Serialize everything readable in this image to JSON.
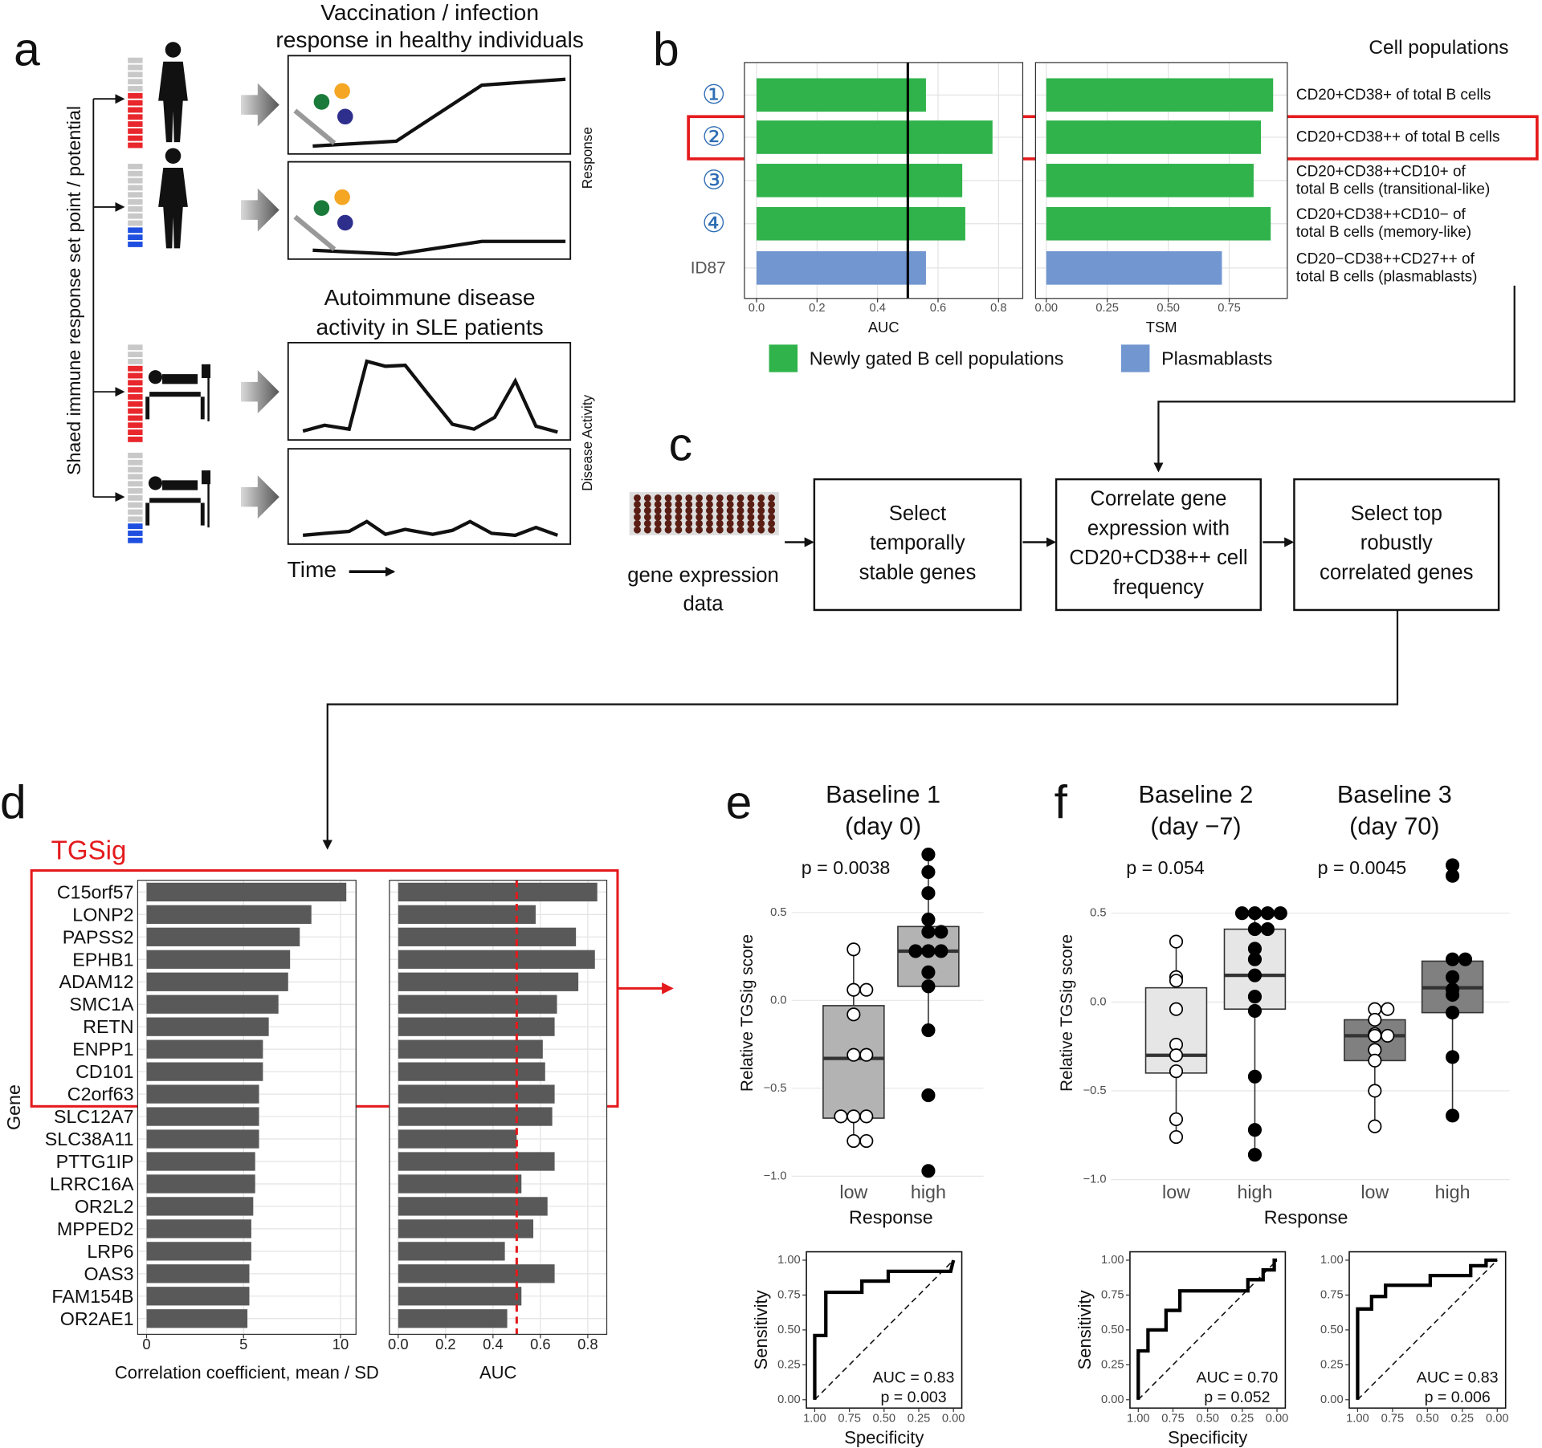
{
  "panel_labels": [
    "a",
    "b",
    "c",
    "d",
    "e",
    "f"
  ],
  "panel_a": {
    "titles": [
      [
        "Vaccination / infection",
        "response in healthy individuals"
      ],
      [
        "Autoimmune disease",
        "activity in SLE patients"
      ]
    ],
    "y_label": "Shaed immune response set point / potential",
    "side_labels": [
      "Response",
      "Disease Activity"
    ],
    "x_label": "Time"
  },
  "panel_b": {
    "header": "Cell populations",
    "legend": [
      {
        "name": "Newly gated B cell populations",
        "color": "#2fb34a"
      },
      {
        "name": "Plasmablasts",
        "color": "#7196d0"
      }
    ]
  },
  "panel_c": {
    "input": [
      "gene expression",
      "data"
    ],
    "steps": [
      [
        "Select",
        "temporally",
        "stable genes"
      ],
      [
        "Correlate gene",
        "expression with",
        "CD20+CD38++ cell",
        "frequency"
      ],
      [
        "Select top",
        "robustly",
        "correlated genes"
      ]
    ]
  },
  "panel_d": {
    "highlight": "TGSig"
  },
  "chart_data": [
    {
      "type": "hbar",
      "categories": [
        "①",
        "②",
        "③",
        "④",
        "ID87"
      ],
      "values": [
        0.56,
        0.78,
        0.68,
        0.69,
        0.56
      ],
      "colors": [
        "#2fb34a",
        "#2fb34a",
        "#2fb34a",
        "#2fb34a",
        "#7196d0"
      ],
      "xlim": [
        -0.04,
        0.88
      ],
      "xticks": [
        {
          "value": 0,
          "label": "0.0"
        },
        0.2,
        0.4,
        0.6,
        0.8
      ],
      "x_label": "AUC",
      "grid": true,
      "reference_line": 0.5,
      "reference_color": "#000000"
    },
    {
      "type": "hbar",
      "categories": [
        [
          "CD20+CD38+ of total B cells"
        ],
        [
          "CD20+CD38++ of total B cells"
        ],
        [
          "CD20+CD38++CD10+ of",
          "total B cells (transitional-like)"
        ],
        [
          "CD20+CD38++CD10− of",
          "total B cells (memory-like)"
        ],
        [
          "CD20−CD38++CD27++  of",
          "total B cells (plasmablasts)"
        ]
      ],
      "values": [
        0.93,
        0.88,
        0.85,
        0.92,
        0.72
      ],
      "colors": [
        "#2fb34a",
        "#2fb34a",
        "#2fb34a",
        "#2fb34a",
        "#7196d0"
      ],
      "xlim": [
        -0.044,
        0.988
      ],
      "xticks": [
        {
          "value": 0,
          "label": "0.00"
        },
        0.25,
        {
          "value": 0.5,
          "label": "0.50"
        },
        0.75
      ],
      "x_label": "TSM",
      "grid": true
    },
    {
      "type": "hbar",
      "categories": [
        "C15orf57",
        "LONP2",
        "PAPSS2",
        "EPHB1",
        "ADAM12",
        "SMC1A",
        "RETN",
        "ENPP1",
        "CD101",
        "C2orf63",
        "SLC12A7",
        "SLC38A11",
        "PTTG1IP",
        "LRRC16A",
        "OR2L2",
        "MPPED2",
        "LRP6",
        "OAS3",
        "FAM154B",
        "OR2AE1"
      ],
      "values": [
        10.3,
        8.5,
        7.9,
        7.4,
        7.3,
        6.8,
        6.3,
        6.0,
        6.0,
        5.8,
        5.8,
        5.8,
        5.6,
        5.6,
        5.5,
        5.4,
        5.4,
        5.3,
        5.3,
        5.2
      ],
      "colors": [
        "#595959",
        "#595959",
        "#595959",
        "#595959",
        "#595959",
        "#595959",
        "#595959",
        "#595959",
        "#595959",
        "#595959",
        "#595959",
        "#595959",
        "#595959",
        "#595959",
        "#595959",
        "#595959",
        "#595959",
        "#595959",
        "#595959",
        "#595959"
      ],
      "xlim": [
        -0.46,
        10.8
      ],
      "xticks": [
        0,
        5,
        10
      ],
      "x_label": "Correlation coefficient, mean / SD",
      "y_label": "Gene",
      "grid": true
    },
    {
      "type": "hbar",
      "values": [
        0.84,
        0.58,
        0.75,
        0.83,
        0.76,
        0.67,
        0.66,
        0.61,
        0.62,
        0.66,
        0.65,
        0.5,
        0.66,
        0.52,
        0.63,
        0.57,
        0.45,
        0.66,
        0.52,
        0.46
      ],
      "colors": [
        "#595959",
        "#595959",
        "#595959",
        "#595959",
        "#595959",
        "#595959",
        "#595959",
        "#595959",
        "#595959",
        "#595959",
        "#595959",
        "#595959",
        "#595959",
        "#595959",
        "#595959",
        "#595959",
        "#595959",
        "#595959",
        "#595959",
        "#595959"
      ],
      "xlim": [
        -0.037,
        0.88
      ],
      "xticks": [
        {
          "value": 0,
          "label": "0.0"
        },
        0.2,
        0.4,
        0.6,
        0.8
      ],
      "x_label": "AUC",
      "grid": true,
      "reference_line": 0.5,
      "reference_color": "#e41a1c",
      "reference_dashed": true
    },
    {
      "type": "box",
      "title": "Baseline 1",
      "subtitle": "(day 0)",
      "annotation": "p = 0.0038",
      "categories": [
        "low",
        "high"
      ],
      "x_label": "Response",
      "y_label": "Relative TGSig score",
      "ylim": [
        -1.05,
        0.89
      ],
      "yticks": [
        0.5,
        {
          "value": 0,
          "label": "0.0"
        },
        {
          "value": -0.5,
          "label": "−0.5"
        },
        {
          "value": -1,
          "label": "−1.0"
        }
      ],
      "box_color": "#b3b3b3",
      "point_colors": [
        "#ffffff",
        "#000000"
      ],
      "boxes": [
        {
          "min": -0.8,
          "q1": -0.67,
          "median": -0.33,
          "q3": -0.03,
          "max": 0.29,
          "points": [
            0.29,
            0.06,
            0.06,
            -0.08,
            -0.31,
            -0.31,
            -0.66,
            -0.66,
            -0.66,
            -0.8,
            -0.8
          ]
        },
        {
          "min": -0.17,
          "q1": 0.08,
          "median": 0.28,
          "q3": 0.42,
          "max": 0.83,
          "points": [
            0.83,
            0.73,
            0.61,
            0.46,
            0.39,
            0.39,
            0.28,
            0.28,
            0.28,
            0.16,
            0.08,
            -0.17,
            -0.54,
            -0.97
          ]
        }
      ]
    },
    {
      "type": "box",
      "title": "Baseline 2",
      "subtitle": "(day −7)",
      "annotation": "p = 0.054",
      "categories": [
        "low",
        "high"
      ],
      "x_label": "Response",
      "y_label": "Relative TGSig score",
      "ylim": [
        -1.03,
        0.89
      ],
      "yticks": [
        0.5,
        {
          "value": 0,
          "label": "0.0"
        },
        {
          "value": -0.5,
          "label": "−0.5"
        },
        {
          "value": -1,
          "label": "−1.0"
        }
      ],
      "box_color": "#e6e6e6",
      "point_colors": [
        "#ffffff",
        "#000000"
      ],
      "boxes": [
        {
          "min": -0.77,
          "q1": -0.4,
          "median": -0.3,
          "q3": 0.08,
          "max": 0.34,
          "points": [
            0.34,
            0.14,
            0.12,
            -0.04,
            -0.24,
            -0.3,
            -0.39,
            -0.66,
            -0.76
          ]
        },
        {
          "min": -0.86,
          "q1": -0.04,
          "median": 0.15,
          "q3": 0.41,
          "max": 0.5,
          "points": [
            0.5,
            0.5,
            0.5,
            0.5,
            0.41,
            0.41,
            0.3,
            0.24,
            0.15,
            0.03,
            -0.05,
            -0.42,
            -0.72,
            -0.86
          ]
        }
      ]
    },
    {
      "type": "box",
      "title": "Baseline 3",
      "subtitle": "(day 70)",
      "annotation": "p = 0.0045",
      "categories": [
        "low",
        "high"
      ],
      "ylim": [
        -1.03,
        0.89
      ],
      "box_color": "#808080",
      "point_colors": [
        "#ffffff",
        "#000000"
      ],
      "boxes": [
        {
          "min": -0.7,
          "q1": -0.33,
          "median": -0.19,
          "q3": -0.1,
          "max": -0.04,
          "points": [
            -0.04,
            -0.04,
            -0.1,
            -0.18,
            -0.19,
            -0.19,
            -0.27,
            -0.33,
            -0.5,
            -0.7
          ]
        },
        {
          "min": -0.64,
          "q1": -0.06,
          "median": 0.08,
          "q3": 0.23,
          "max": 0.24,
          "points": [
            0.77,
            0.71,
            0.24,
            0.24,
            0.14,
            0.07,
            0.04,
            -0.06,
            -0.31,
            -0.64
          ]
        }
      ]
    },
    {
      "type": "roc",
      "x": [
        1,
        1,
        0.92,
        0.92,
        0.66,
        0.66,
        0.47,
        0.47,
        0.02,
        0
      ],
      "values": [
        0,
        0.46,
        0.46,
        0.77,
        0.77,
        0.85,
        0.85,
        0.92,
        0.92,
        1
      ],
      "xlim": [
        1.06,
        -0.06
      ],
      "ylim": [
        -0.06,
        1.06
      ],
      "xticks": [
        {
          "value": 1,
          "label": "1.00"
        },
        0.75,
        {
          "value": 0.5,
          "label": "0.50"
        },
        0.25,
        {
          "value": 0,
          "label": "0.00"
        }
      ],
      "yticks": [
        {
          "value": 0,
          "label": "0.00"
        },
        0.25,
        {
          "value": 0.5,
          "label": "0.50"
        },
        0.75,
        {
          "value": 1,
          "label": "1.00"
        }
      ],
      "x_label": "Specificity",
      "y_label": "Sensitivity",
      "annotations": [
        "AUC = 0.83",
        "p = 0.003"
      ]
    },
    {
      "type": "roc",
      "x": [
        1,
        1,
        0.93,
        0.93,
        0.8,
        0.8,
        0.7,
        0.7,
        0.21,
        0.21,
        0.1,
        0.1,
        0.02,
        0.02,
        0
      ],
      "values": [
        0,
        0.35,
        0.35,
        0.5,
        0.5,
        0.64,
        0.64,
        0.78,
        0.78,
        0.86,
        0.86,
        0.93,
        0.93,
        1,
        1
      ],
      "xlim": [
        1.06,
        -0.06
      ],
      "ylim": [
        -0.06,
        1.06
      ],
      "xticks": [
        {
          "value": 1,
          "label": "1.00"
        },
        0.75,
        {
          "value": 0.5,
          "label": "0.50"
        },
        0.25,
        {
          "value": 0,
          "label": "0.00"
        }
      ],
      "yticks": [
        {
          "value": 0,
          "label": "0.00"
        },
        0.25,
        {
          "value": 0.5,
          "label": "0.50"
        },
        0.75,
        {
          "value": 1,
          "label": "1.00"
        }
      ],
      "x_label": "Specificity",
      "y_label": "Sensitivity",
      "annotations": [
        "AUC = 0.70",
        "p = 0.052"
      ]
    },
    {
      "type": "roc",
      "x": [
        1,
        1,
        0.9,
        0.9,
        0.8,
        0.8,
        0.48,
        0.48,
        0.19,
        0.19,
        0.08,
        0.08,
        0
      ],
      "values": [
        0,
        0.65,
        0.65,
        0.74,
        0.74,
        0.82,
        0.82,
        0.89,
        0.89,
        0.96,
        0.96,
        1,
        1
      ],
      "xlim": [
        1.06,
        -0.06
      ],
      "ylim": [
        -0.06,
        1.06
      ],
      "xticks": [
        {
          "value": 1,
          "label": "1.00"
        },
        0.75,
        {
          "value": 0.5,
          "label": "0.50"
        },
        0.25,
        {
          "value": 0,
          "label": "0.00"
        }
      ],
      "yticks": [
        {
          "value": 0,
          "label": "0.00"
        },
        0.25,
        {
          "value": 0.5,
          "label": "0.50"
        },
        0.75,
        {
          "value": 1,
          "label": "1.00"
        }
      ],
      "annotations": [
        "AUC = 0.83",
        "p = 0.006"
      ]
    }
  ]
}
